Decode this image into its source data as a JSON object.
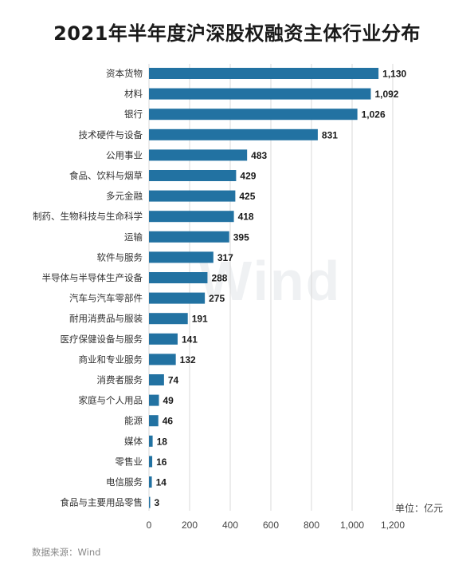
{
  "chart_data": {
    "type": "bar",
    "orientation": "horizontal",
    "title": "2021年半年度沪深股权融资主体行业分布",
    "unit_label": "单位：亿元",
    "source": "数据来源：Wind",
    "watermark": "Wind",
    "categories": [
      "资本货物",
      "材料",
      "银行",
      "技术硬件与设备",
      "公用事业",
      "食品、饮料与烟草",
      "多元金融",
      "制药、生物科技与生命科学",
      "运输",
      "软件与服务",
      "半导体与半导体生产设备",
      "汽车与汽车零部件",
      "耐用消费品与服装",
      "医疗保健设备与服务",
      "商业和专业服务",
      "消费者服务",
      "家庭与个人用品",
      "能源",
      "媒体",
      "零售业",
      "电信服务",
      "食品与主要用品零售"
    ],
    "values": [
      1130,
      1092,
      1026,
      831,
      483,
      429,
      425,
      418,
      395,
      317,
      288,
      275,
      191,
      141,
      132,
      74,
      49,
      46,
      18,
      16,
      14,
      3
    ],
    "value_labels": [
      "1,130",
      "1,092",
      "1,026",
      "831",
      "483",
      "429",
      "425",
      "418",
      "395",
      "317",
      "288",
      "275",
      "191",
      "141",
      "132",
      "74",
      "49",
      "46",
      "18",
      "16",
      "14",
      "3"
    ],
    "xlim": [
      0,
      1200
    ],
    "xticks": [
      0,
      200,
      400,
      600,
      800,
      1000,
      1200
    ],
    "xtick_labels": [
      "0",
      "200",
      "400",
      "600",
      "800",
      "1,000",
      "1,200"
    ],
    "grid": true,
    "bar_color": "#2272a2"
  }
}
